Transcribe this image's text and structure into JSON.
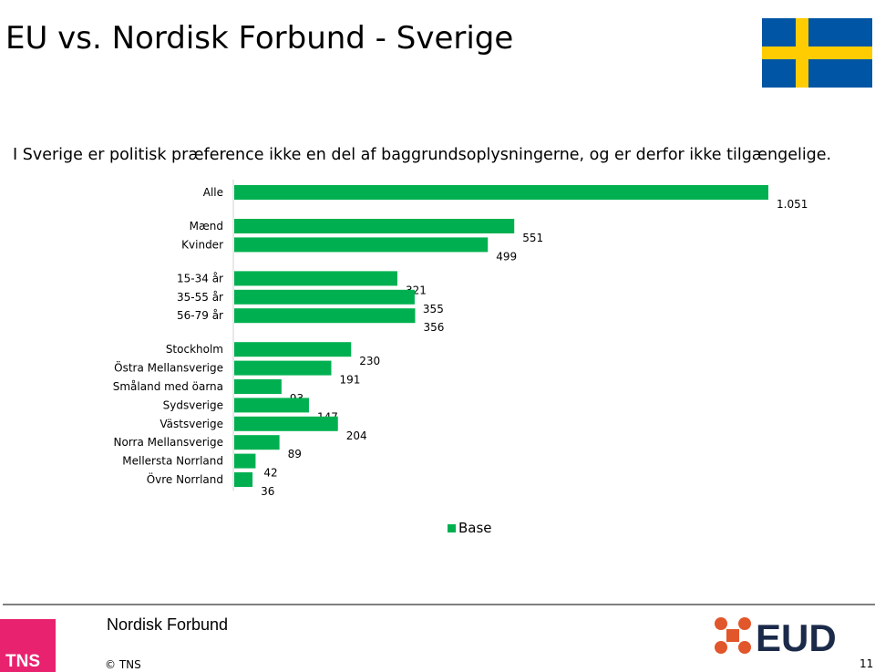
{
  "slide": {
    "title": "EU vs. Nordisk Forbund - Sverige",
    "subtitle": "I Sverige er politisk præference ikke en del af baggrundsoplysningerne, og er derfor ikke tilgængelige.",
    "legend_label": "Base",
    "footer_text": "Nordisk Forbund",
    "copyright": "© TNS",
    "page_number": "11",
    "tns_logo_text": "TNS",
    "eud_logo_text": "EUD",
    "colors": {
      "bar": "#00b050",
      "flag_blue": "#0055a4",
      "flag_yellow": "#fecc00",
      "tns_pink": "#e8226e",
      "eud_orange": "#e2562b",
      "eud_dark": "#1c2a4a"
    }
  },
  "chart_data": {
    "type": "bar",
    "orientation": "horizontal",
    "series": [
      {
        "name": "Base",
        "values": [
          1051,
          551,
          499,
          321,
          355,
          356,
          230,
          191,
          93,
          147,
          204,
          89,
          42,
          36
        ]
      }
    ],
    "categories": [
      "Alle",
      "Mænd",
      "Kvinder",
      "15-34 år",
      "35-55 år",
      "56-79 år",
      "Stockholm",
      "Östra Mellansverige",
      "Småland med öarna",
      "Sydsverige",
      "Västsverige",
      "Norra Mellansverige",
      "Mellersta Norrland",
      "Övre Norrland"
    ],
    "value_labels": [
      "1.051",
      "551",
      "499",
      "321",
      "355",
      "356",
      "230",
      "191",
      "93",
      "147",
      "204",
      "89",
      "42",
      "36"
    ],
    "groups": [
      [
        0
      ],
      [
        1,
        2
      ],
      [
        3,
        4,
        5
      ],
      [
        6,
        7,
        8,
        9,
        10,
        11,
        12,
        13
      ]
    ],
    "xlim": [
      0,
      1051
    ],
    "grid": false,
    "legend_position": "bottom-center"
  }
}
